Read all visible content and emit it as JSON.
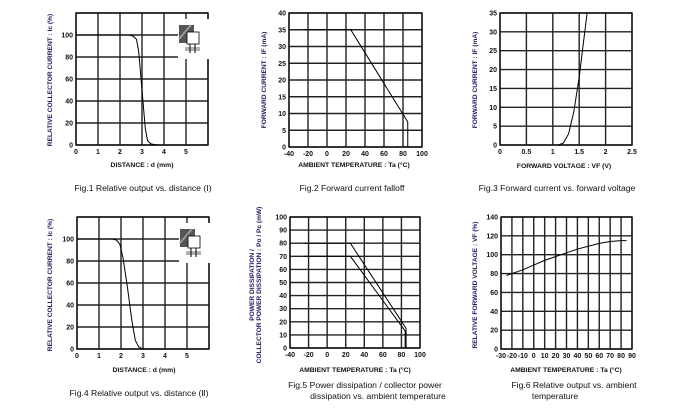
{
  "chart_data": [
    {
      "type": "line",
      "title": "Fig.1 Relative output vs. distance (Ⅰ)",
      "xlabel": "DISTANCE : d (mm)",
      "ylabel": [
        "RELATIVE COLLECTOR CURRENT : Ic (%)"
      ],
      "xlim": [
        0,
        6
      ],
      "ylim": [
        0,
        120
      ],
      "xgrid": [
        0,
        1,
        2,
        3,
        4,
        5,
        6
      ],
      "ygrid": [
        0,
        20,
        40,
        60,
        80,
        100,
        120
      ],
      "xticks": [
        "0",
        "1",
        "2",
        "3",
        "4",
        "5"
      ],
      "xtick_values": [
        0,
        1,
        2,
        3,
        4,
        5
      ],
      "yticks": [
        "0",
        "20",
        "40",
        "60",
        "80",
        "100"
      ],
      "ytick_values": [
        0,
        20,
        40,
        60,
        80,
        100
      ],
      "series": [
        {
          "name": "Ic",
          "points": [
            [
              0,
              100
            ],
            [
              2.4,
              100
            ],
            [
              2.6,
              99
            ],
            [
              2.75,
              96
            ],
            [
              2.85,
              85
            ],
            [
              3.0,
              50
            ],
            [
              3.15,
              15
            ],
            [
              3.25,
              4
            ],
            [
              3.4,
              1
            ],
            [
              3.7,
              0
            ]
          ]
        }
      ],
      "inset": "sensor-distance-diagram-1"
    },
    {
      "type": "line",
      "title": "Fig.2 Forward current falloff",
      "xlabel": "AMBIENT  TEMPERATURE : Ta (°C)",
      "ylabel": [
        "FORWARD CURRENT : IF (mA)"
      ],
      "xlim": [
        -40,
        100
      ],
      "ylim": [
        0,
        40
      ],
      "xgrid": [
        -40,
        -20,
        0,
        20,
        40,
        60,
        80,
        100
      ],
      "ygrid": [
        0,
        5,
        10,
        15,
        20,
        25,
        30,
        35,
        40
      ],
      "xticks": [
        "-40",
        "-20",
        "0",
        "20",
        "40",
        "60",
        "80",
        "100"
      ],
      "xtick_values": [
        -40,
        -20,
        0,
        20,
        40,
        60,
        80,
        100
      ],
      "yticks": [
        "0",
        "5",
        "10",
        "15",
        "20",
        "25",
        "30",
        "35",
        "40"
      ],
      "ytick_values": [
        0,
        5,
        10,
        15,
        20,
        25,
        30,
        35,
        40
      ],
      "series": [
        {
          "name": "IF",
          "points": [
            [
              -25,
              35
            ],
            [
              25,
              35
            ],
            [
              85,
              7.5
            ],
            [
              85,
              0
            ]
          ]
        }
      ]
    },
    {
      "type": "line",
      "title": "Fig.3 Forward current vs. forward voltage",
      "xlabel": "FORWARD  VOLTAGE : VF (V)",
      "ylabel": [
        "FORWARD CURRENT : IF (mA)"
      ],
      "xlim": [
        0,
        2.5
      ],
      "ylim": [
        0,
        35
      ],
      "xgrid": [
        0,
        0.5,
        1,
        1.5,
        2,
        2.5
      ],
      "ygrid": [
        0,
        5,
        10,
        15,
        20,
        25,
        30,
        35
      ],
      "xticks": [
        "0",
        "0.5",
        "1",
        "1.5",
        "2",
        "2.5"
      ],
      "xtick_values": [
        0,
        0.5,
        1,
        1.5,
        2,
        2.5
      ],
      "yticks": [
        "0",
        "5",
        "10",
        "15",
        "20",
        "25",
        "30",
        "35"
      ],
      "ytick_values": [
        0,
        5,
        10,
        15,
        20,
        25,
        30,
        35
      ],
      "series": [
        {
          "name": "IF",
          "points": [
            [
              1.1,
              0
            ],
            [
              1.2,
              0.5
            ],
            [
              1.3,
              3
            ],
            [
              1.4,
              9
            ],
            [
              1.5,
              18
            ],
            [
              1.57,
              26
            ],
            [
              1.65,
              35
            ]
          ]
        }
      ]
    },
    {
      "type": "line",
      "title": "Fig.4 Relative output vs. distance (Ⅱ)",
      "xlabel": "DISTANCE : d (mm)",
      "ylabel": [
        "RELATIVE COLLECTOR CURRENT : Ic (%)"
      ],
      "xlim": [
        0,
        6
      ],
      "ylim": [
        0,
        120
      ],
      "xgrid": [
        0,
        1,
        2,
        3,
        4,
        5,
        6
      ],
      "ygrid": [
        0,
        20,
        40,
        60,
        80,
        100,
        120
      ],
      "xticks": [
        "0",
        "1",
        "2",
        "3",
        "4",
        "5"
      ],
      "xtick_values": [
        0,
        1,
        2,
        3,
        4,
        5
      ],
      "yticks": [
        "0",
        "20",
        "40",
        "60",
        "80",
        "100"
      ],
      "ytick_values": [
        0,
        20,
        40,
        60,
        80,
        100
      ],
      "series": [
        {
          "name": "Ic",
          "points": [
            [
              0,
              100
            ],
            [
              1.6,
              100
            ],
            [
              1.8,
              99
            ],
            [
              1.95,
              95
            ],
            [
              2.1,
              82
            ],
            [
              2.3,
              55
            ],
            [
              2.5,
              25
            ],
            [
              2.65,
              8
            ],
            [
              2.8,
              2
            ],
            [
              3.0,
              0
            ],
            [
              3.9,
              0
            ]
          ]
        }
      ],
      "inset": "sensor-distance-diagram-2"
    },
    {
      "type": "line",
      "title": [
        "Fig.5 Power dissipation / collector power",
        "dissipation vs. ambient temperature"
      ],
      "xlabel": "AMBIENT  TEMPERATURE : Ta (°C)",
      "ylabel": [
        "POWER DISSIPATION /",
        "COLLECTOR POWER DISSIPATION : Po / Pc (mW)"
      ],
      "xlim": [
        -40,
        100
      ],
      "ylim": [
        0,
        100
      ],
      "xgrid": [
        -40,
        -20,
        0,
        20,
        40,
        60,
        80,
        100
      ],
      "ygrid": [
        0,
        10,
        20,
        30,
        40,
        50,
        60,
        70,
        80,
        90,
        100
      ],
      "xticks": [
        "-40",
        "-20",
        "0",
        "20",
        "40",
        "60",
        "80",
        "100"
      ],
      "xtick_values": [
        -40,
        -20,
        0,
        20,
        40,
        60,
        80,
        100
      ],
      "yticks": [
        "0",
        "10",
        "20",
        "30",
        "40",
        "50",
        "60",
        "70",
        "80",
        "90",
        "100"
      ],
      "ytick_values": [
        0,
        10,
        20,
        30,
        40,
        50,
        60,
        70,
        80,
        90,
        100
      ],
      "series": [
        {
          "name": "Po",
          "points": [
            [
              -25,
              80
            ],
            [
              25,
              80
            ],
            [
              85,
              15
            ],
            [
              85,
              0
            ]
          ]
        },
        {
          "name": "Pc",
          "points": [
            [
              -25,
              70
            ],
            [
              25,
              70
            ],
            [
              84,
              13
            ],
            [
              84,
              0
            ]
          ]
        }
      ]
    },
    {
      "type": "line",
      "title": [
        "Fig.6 Relative output vs. ambient",
        "temperature"
      ],
      "xlabel": "AMBIENT  TEMPERATURE : Ta (°C)",
      "ylabel": [
        "RELATIVE  FORWARD  VOLTAGE : VF (%)"
      ],
      "xlim": [
        -30,
        90
      ],
      "ylim": [
        0,
        140
      ],
      "xgrid": [
        -30,
        -20,
        -10,
        0,
        10,
        20,
        30,
        40,
        50,
        60,
        70,
        80,
        90
      ],
      "ygrid": [
        0,
        20,
        40,
        60,
        80,
        100,
        120,
        140
      ],
      "xticks": [
        "-30",
        "-20",
        "-10",
        "0",
        "10",
        "20",
        "30",
        "40",
        "50",
        "60",
        "70",
        "80",
        "90"
      ],
      "xtick_values": [
        -30,
        -20,
        -10,
        0,
        10,
        20,
        30,
        40,
        50,
        60,
        70,
        80,
        90
      ],
      "yticks": [
        "0",
        "20",
        "40",
        "60",
        "80",
        "100",
        "120",
        "140"
      ],
      "ytick_values": [
        0,
        20,
        40,
        60,
        80,
        100,
        120,
        140
      ],
      "series": [
        {
          "name": "VF",
          "points": [
            [
              -25,
              78
            ],
            [
              -10,
              84
            ],
            [
              0,
              89
            ],
            [
              10,
              94
            ],
            [
              20,
              98
            ],
            [
              30,
              102
            ],
            [
              40,
              106
            ],
            [
              50,
              109
            ],
            [
              60,
              112
            ],
            [
              70,
              114
            ],
            [
              80,
              115
            ],
            [
              85,
              115
            ]
          ]
        }
      ]
    }
  ]
}
